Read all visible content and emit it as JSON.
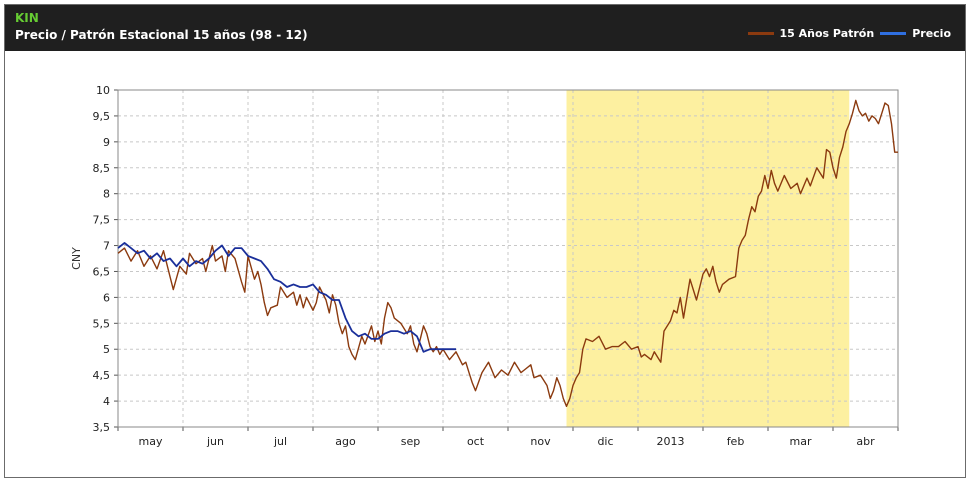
{
  "header": {
    "symbol": "KIN",
    "title": "Precio / Patrón Estacional 15 años (98 - 12)"
  },
  "colors": {
    "header_bg": "#1f1f1f",
    "seasonal_line": "#8b3a0f",
    "price_line": "#1a2f9a",
    "highlight": "#fdf0a0",
    "grid": "#c8c8c8"
  },
  "chart_data": {
    "type": "line",
    "title": "Precio / Patrón Estacional 15 años (98 - 12)",
    "ylabel": "CNY",
    "ylim": [
      3.5,
      10
    ],
    "xlim": [
      0,
      12
    ],
    "grid": true,
    "legend_position": "top-right",
    "y_ticks": [
      "3,5",
      "4",
      "4,5",
      "5",
      "5,5",
      "6",
      "6,5",
      "7",
      "7,5",
      "8",
      "8,5",
      "9",
      "9,5",
      "10"
    ],
    "x_tick_labels": [
      {
        "label": "may",
        "pos": 0.5
      },
      {
        "label": "jun",
        "pos": 1.5
      },
      {
        "label": "jul",
        "pos": 2.5
      },
      {
        "label": "ago",
        "pos": 3.5
      },
      {
        "label": "sep",
        "pos": 4.5
      },
      {
        "label": "oct",
        "pos": 5.5
      },
      {
        "label": "nov",
        "pos": 6.5
      },
      {
        "label": "dic",
        "pos": 7.5
      },
      {
        "label": "2013",
        "pos": 8.5
      },
      {
        "label": "feb",
        "pos": 9.5
      },
      {
        "label": "mar",
        "pos": 10.5
      },
      {
        "label": "abr",
        "pos": 11.5
      }
    ],
    "highlight_range": [
      6.9,
      11.25
    ],
    "series": [
      {
        "name": "15 Años Patrón",
        "color": "#8b3a0f",
        "points": [
          [
            0.0,
            6.85
          ],
          [
            0.1,
            6.95
          ],
          [
            0.2,
            6.7
          ],
          [
            0.3,
            6.9
          ],
          [
            0.4,
            6.6
          ],
          [
            0.5,
            6.8
          ],
          [
            0.6,
            6.55
          ],
          [
            0.7,
            6.9
          ],
          [
            0.8,
            6.4
          ],
          [
            0.85,
            6.15
          ],
          [
            0.95,
            6.6
          ],
          [
            1.05,
            6.45
          ],
          [
            1.1,
            6.85
          ],
          [
            1.2,
            6.65
          ],
          [
            1.3,
            6.75
          ],
          [
            1.35,
            6.5
          ],
          [
            1.45,
            7.0
          ],
          [
            1.5,
            6.7
          ],
          [
            1.6,
            6.8
          ],
          [
            1.65,
            6.5
          ],
          [
            1.7,
            6.9
          ],
          [
            1.8,
            6.75
          ],
          [
            1.9,
            6.3
          ],
          [
            1.95,
            6.1
          ],
          [
            2.0,
            6.8
          ],
          [
            2.1,
            6.35
          ],
          [
            2.15,
            6.5
          ],
          [
            2.2,
            6.25
          ],
          [
            2.25,
            5.9
          ],
          [
            2.3,
            5.65
          ],
          [
            2.35,
            5.8
          ],
          [
            2.45,
            5.85
          ],
          [
            2.5,
            6.2
          ],
          [
            2.6,
            6.0
          ],
          [
            2.7,
            6.1
          ],
          [
            2.75,
            5.85
          ],
          [
            2.8,
            6.05
          ],
          [
            2.85,
            5.8
          ],
          [
            2.9,
            6.0
          ],
          [
            3.0,
            5.75
          ],
          [
            3.05,
            5.9
          ],
          [
            3.1,
            6.2
          ],
          [
            3.2,
            5.95
          ],
          [
            3.25,
            5.7
          ],
          [
            3.3,
            6.05
          ],
          [
            3.35,
            5.85
          ],
          [
            3.4,
            5.5
          ],
          [
            3.45,
            5.3
          ],
          [
            3.5,
            5.45
          ],
          [
            3.55,
            5.05
          ],
          [
            3.6,
            4.9
          ],
          [
            3.65,
            4.8
          ],
          [
            3.75,
            5.25
          ],
          [
            3.8,
            5.1
          ],
          [
            3.9,
            5.45
          ],
          [
            3.95,
            5.15
          ],
          [
            4.0,
            5.35
          ],
          [
            4.05,
            5.1
          ],
          [
            4.1,
            5.6
          ],
          [
            4.15,
            5.9
          ],
          [
            4.2,
            5.8
          ],
          [
            4.25,
            5.6
          ],
          [
            4.35,
            5.5
          ],
          [
            4.45,
            5.3
          ],
          [
            4.5,
            5.45
          ],
          [
            4.55,
            5.1
          ],
          [
            4.6,
            4.95
          ],
          [
            4.65,
            5.2
          ],
          [
            4.7,
            5.45
          ],
          [
            4.75,
            5.3
          ],
          [
            4.8,
            5.05
          ],
          [
            4.85,
            4.95
          ],
          [
            4.9,
            5.05
          ],
          [
            4.95,
            4.9
          ],
          [
            5.0,
            5.0
          ],
          [
            5.1,
            4.8
          ],
          [
            5.2,
            4.95
          ],
          [
            5.3,
            4.7
          ],
          [
            5.35,
            4.75
          ],
          [
            5.4,
            4.55
          ],
          [
            5.45,
            4.35
          ],
          [
            5.5,
            4.2
          ],
          [
            5.6,
            4.55
          ],
          [
            5.7,
            4.75
          ],
          [
            5.75,
            4.6
          ],
          [
            5.8,
            4.45
          ],
          [
            5.9,
            4.6
          ],
          [
            6.0,
            4.5
          ],
          [
            6.1,
            4.75
          ],
          [
            6.2,
            4.55
          ],
          [
            6.25,
            4.6
          ],
          [
            6.35,
            4.7
          ],
          [
            6.4,
            4.45
          ],
          [
            6.5,
            4.5
          ],
          [
            6.6,
            4.3
          ],
          [
            6.65,
            4.05
          ],
          [
            6.7,
            4.2
          ],
          [
            6.75,
            4.45
          ],
          [
            6.8,
            4.3
          ],
          [
            6.85,
            4.05
          ],
          [
            6.9,
            3.9
          ],
          [
            6.95,
            4.05
          ],
          [
            7.0,
            4.3
          ],
          [
            7.05,
            4.45
          ],
          [
            7.1,
            4.55
          ],
          [
            7.15,
            5.0
          ],
          [
            7.2,
            5.2
          ],
          [
            7.3,
            5.15
          ],
          [
            7.4,
            5.25
          ],
          [
            7.5,
            5.0
          ],
          [
            7.6,
            5.05
          ],
          [
            7.7,
            5.05
          ],
          [
            7.8,
            5.15
          ],
          [
            7.9,
            5.0
          ],
          [
            8.0,
            5.05
          ],
          [
            8.05,
            4.85
          ],
          [
            8.1,
            4.9
          ],
          [
            8.2,
            4.8
          ],
          [
            8.25,
            4.95
          ],
          [
            8.3,
            4.85
          ],
          [
            8.35,
            4.75
          ],
          [
            8.4,
            5.35
          ],
          [
            8.5,
            5.55
          ],
          [
            8.55,
            5.75
          ],
          [
            8.6,
            5.7
          ],
          [
            8.65,
            6.0
          ],
          [
            8.7,
            5.6
          ],
          [
            8.8,
            6.35
          ],
          [
            8.9,
            5.95
          ],
          [
            9.0,
            6.45
          ],
          [
            9.05,
            6.55
          ],
          [
            9.1,
            6.4
          ],
          [
            9.15,
            6.6
          ],
          [
            9.2,
            6.3
          ],
          [
            9.25,
            6.1
          ],
          [
            9.3,
            6.25
          ],
          [
            9.35,
            6.3
          ],
          [
            9.4,
            6.35
          ],
          [
            9.5,
            6.4
          ],
          [
            9.55,
            6.95
          ],
          [
            9.6,
            7.1
          ],
          [
            9.65,
            7.2
          ],
          [
            9.7,
            7.5
          ],
          [
            9.75,
            7.75
          ],
          [
            9.8,
            7.65
          ],
          [
            9.85,
            7.95
          ],
          [
            9.9,
            8.05
          ],
          [
            9.95,
            8.35
          ],
          [
            10.0,
            8.1
          ],
          [
            10.05,
            8.45
          ],
          [
            10.1,
            8.2
          ],
          [
            10.15,
            8.05
          ],
          [
            10.25,
            8.35
          ],
          [
            10.35,
            8.1
          ],
          [
            10.45,
            8.2
          ],
          [
            10.5,
            8.0
          ],
          [
            10.6,
            8.3
          ],
          [
            10.65,
            8.15
          ],
          [
            10.75,
            8.5
          ],
          [
            10.85,
            8.3
          ],
          [
            10.9,
            8.85
          ],
          [
            10.95,
            8.8
          ],
          [
            11.0,
            8.5
          ],
          [
            11.05,
            8.3
          ],
          [
            11.1,
            8.7
          ],
          [
            11.15,
            8.9
          ],
          [
            11.2,
            9.2
          ],
          [
            11.25,
            9.35
          ],
          [
            11.3,
            9.55
          ],
          [
            11.35,
            9.8
          ],
          [
            11.4,
            9.6
          ],
          [
            11.45,
            9.5
          ],
          [
            11.5,
            9.55
          ],
          [
            11.55,
            9.4
          ],
          [
            11.6,
            9.5
          ],
          [
            11.65,
            9.45
          ],
          [
            11.7,
            9.35
          ],
          [
            11.75,
            9.55
          ],
          [
            11.8,
            9.75
          ],
          [
            11.85,
            9.7
          ],
          [
            11.9,
            9.35
          ],
          [
            11.95,
            8.8
          ],
          [
            12.0,
            8.8
          ]
        ]
      },
      {
        "name": "Precio",
        "color": "#1a2f9a",
        "points": [
          [
            0.0,
            6.95
          ],
          [
            0.1,
            7.05
          ],
          [
            0.2,
            6.95
          ],
          [
            0.3,
            6.85
          ],
          [
            0.4,
            6.9
          ],
          [
            0.5,
            6.75
          ],
          [
            0.6,
            6.85
          ],
          [
            0.7,
            6.7
          ],
          [
            0.8,
            6.75
          ],
          [
            0.9,
            6.6
          ],
          [
            1.0,
            6.75
          ],
          [
            1.1,
            6.6
          ],
          [
            1.2,
            6.7
          ],
          [
            1.3,
            6.65
          ],
          [
            1.4,
            6.75
          ],
          [
            1.5,
            6.9
          ],
          [
            1.6,
            7.0
          ],
          [
            1.7,
            6.8
          ],
          [
            1.8,
            6.95
          ],
          [
            1.9,
            6.95
          ],
          [
            2.0,
            6.8
          ],
          [
            2.1,
            6.75
          ],
          [
            2.2,
            6.7
          ],
          [
            2.3,
            6.55
          ],
          [
            2.4,
            6.35
          ],
          [
            2.5,
            6.3
          ],
          [
            2.6,
            6.2
          ],
          [
            2.7,
            6.25
          ],
          [
            2.8,
            6.2
          ],
          [
            2.9,
            6.2
          ],
          [
            3.0,
            6.25
          ],
          [
            3.1,
            6.1
          ],
          [
            3.2,
            6.05
          ],
          [
            3.3,
            5.95
          ],
          [
            3.4,
            5.95
          ],
          [
            3.5,
            5.6
          ],
          [
            3.6,
            5.35
          ],
          [
            3.7,
            5.25
          ],
          [
            3.8,
            5.3
          ],
          [
            3.9,
            5.2
          ],
          [
            4.0,
            5.2
          ],
          [
            4.1,
            5.3
          ],
          [
            4.2,
            5.35
          ],
          [
            4.3,
            5.35
          ],
          [
            4.4,
            5.3
          ],
          [
            4.5,
            5.35
          ],
          [
            4.6,
            5.25
          ],
          [
            4.7,
            4.95
          ],
          [
            4.8,
            5.0
          ],
          [
            4.9,
            5.0
          ],
          [
            5.0,
            5.0
          ],
          [
            5.1,
            5.0
          ],
          [
            5.2,
            5.0
          ]
        ]
      }
    ]
  }
}
